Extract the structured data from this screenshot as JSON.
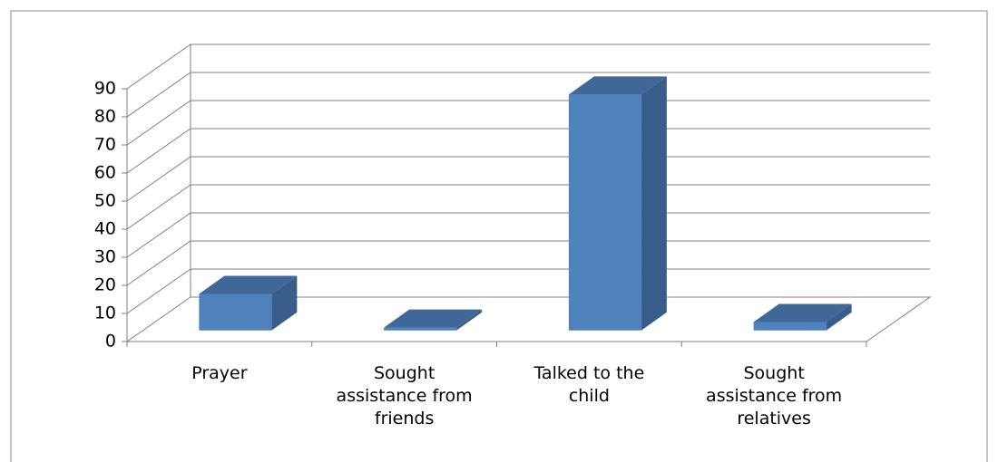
{
  "chart_data": {
    "type": "bar3d",
    "categories": [
      "Prayer",
      "Sought assistance from friends",
      "Talked to the child",
      "Sought assistance from relatives"
    ],
    "values": [
      13,
      1,
      84,
      3
    ],
    "color": "#4f81bd",
    "ylim": [
      0,
      90
    ],
    "yticks": [
      0,
      10,
      20,
      30,
      40,
      50,
      60,
      70,
      80,
      90
    ],
    "grid": true
  }
}
